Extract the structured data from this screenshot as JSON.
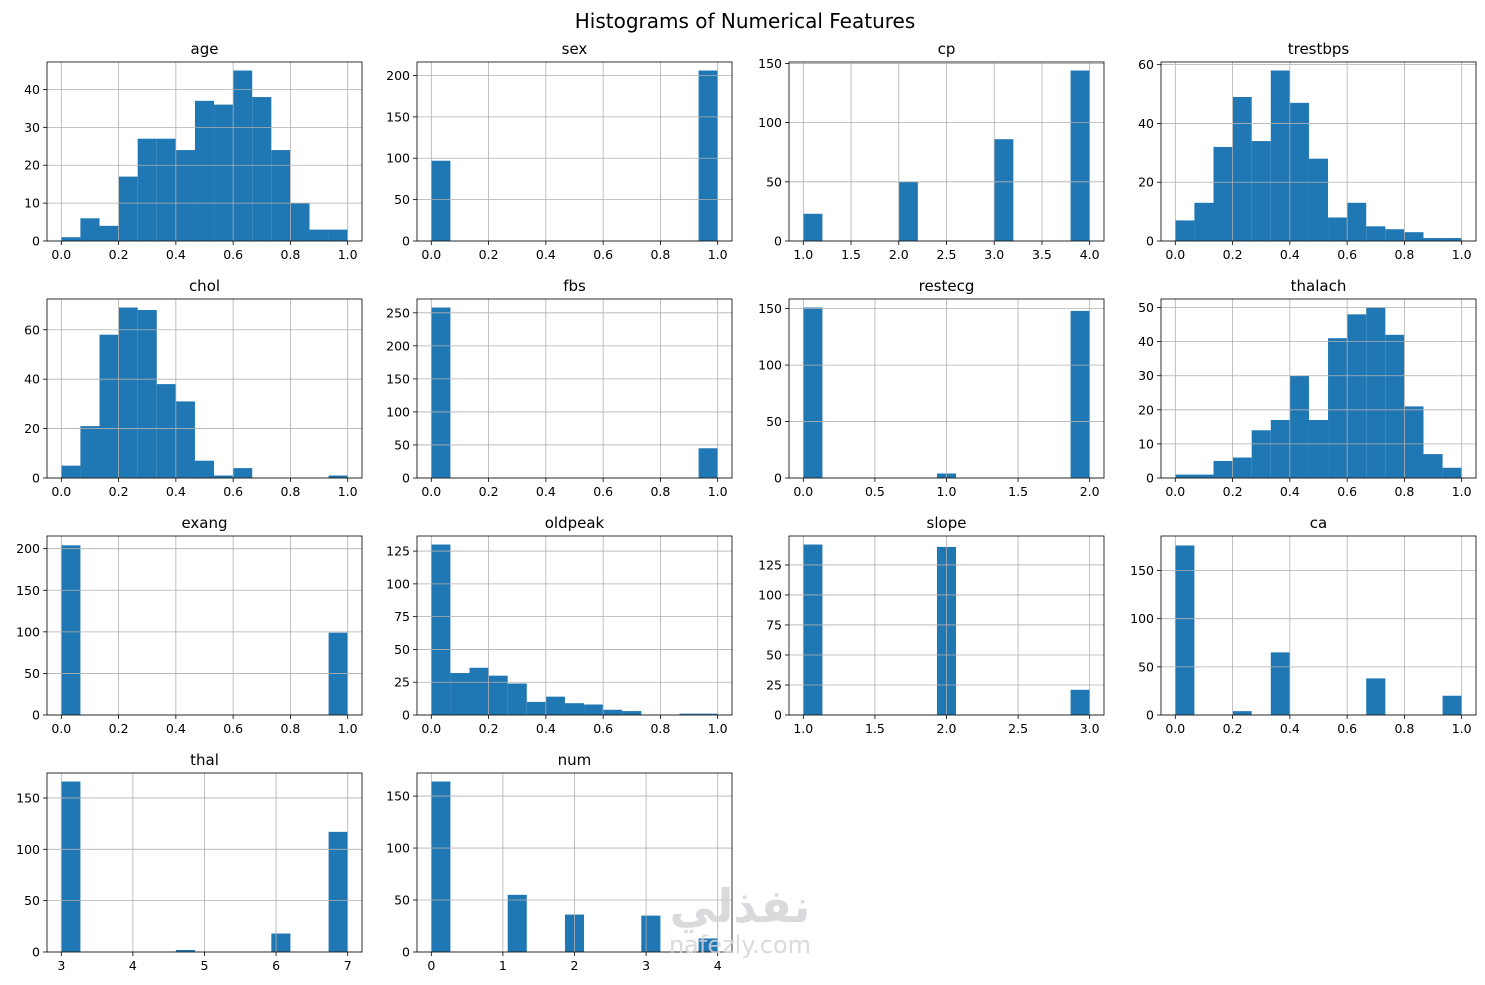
{
  "title": "Histograms of Numerical Features",
  "watermark": {
    "arabic": "نفذلي",
    "latin": "nafezly.com"
  },
  "style": {
    "bar_color": "#1f77b4",
    "grid_color": "#b0b0b0",
    "axis_color": "#000000"
  },
  "chart_data": [
    {
      "type": "bar",
      "title": "age",
      "grid": true,
      "xlim": [
        -0.05,
        1.05
      ],
      "ylim": [
        0,
        47.25
      ],
      "xticks": [
        0,
        0.2,
        0.4,
        0.6,
        0.8,
        1
      ],
      "xtick_labels": [
        "0.0",
        "0.2",
        "0.4",
        "0.6",
        "0.8",
        "1.0"
      ],
      "yticks": [
        0,
        10,
        20,
        30,
        40
      ],
      "ytick_labels": [
        "0",
        "10",
        "20",
        "30",
        "40"
      ],
      "bin_range": [
        0,
        1
      ],
      "bins": 15,
      "values": [
        1,
        6,
        4,
        17,
        27,
        27,
        24,
        37,
        36,
        45,
        38,
        24,
        10,
        3,
        3
      ]
    },
    {
      "type": "bar",
      "title": "sex",
      "grid": true,
      "xlim": [
        -0.05,
        1.05
      ],
      "ylim": [
        0,
        216.3
      ],
      "xticks": [
        0,
        0.2,
        0.4,
        0.6,
        0.8,
        1
      ],
      "xtick_labels": [
        "0.0",
        "0.2",
        "0.4",
        "0.6",
        "0.8",
        "1.0"
      ],
      "yticks": [
        0,
        50,
        100,
        150,
        200
      ],
      "ytick_labels": [
        "0",
        "50",
        "100",
        "150",
        "200"
      ],
      "bin_range": [
        0,
        1
      ],
      "bins": 15,
      "values": [
        97,
        0,
        0,
        0,
        0,
        0,
        0,
        0,
        0,
        0,
        0,
        0,
        0,
        0,
        206
      ]
    },
    {
      "type": "bar",
      "title": "cp",
      "grid": true,
      "xlim": [
        0.85,
        4.15
      ],
      "ylim": [
        0,
        151.2
      ],
      "xticks": [
        1,
        1.5,
        2,
        2.5,
        3,
        3.5,
        4
      ],
      "xtick_labels": [
        "1.0",
        "1.5",
        "2.0",
        "2.5",
        "3.0",
        "3.5",
        "4.0"
      ],
      "yticks": [
        0,
        50,
        100,
        150
      ],
      "ytick_labels": [
        "0",
        "50",
        "100",
        "150"
      ],
      "bin_range": [
        1,
        4
      ],
      "bins": 15,
      "values": [
        23,
        0,
        0,
        0,
        0,
        50,
        0,
        0,
        0,
        0,
        86,
        0,
        0,
        0,
        144
      ]
    },
    {
      "type": "bar",
      "title": "trestbps",
      "grid": true,
      "xlim": [
        -0.05,
        1.05
      ],
      "ylim": [
        0,
        60.9
      ],
      "xticks": [
        0,
        0.2,
        0.4,
        0.6,
        0.8,
        1
      ],
      "xtick_labels": [
        "0.0",
        "0.2",
        "0.4",
        "0.6",
        "0.8",
        "1.0"
      ],
      "yticks": [
        0,
        20,
        40,
        60
      ],
      "ytick_labels": [
        "0",
        "20",
        "40",
        "60"
      ],
      "bin_range": [
        0,
        1
      ],
      "bins": 15,
      "values": [
        7,
        13,
        32,
        49,
        34,
        58,
        47,
        28,
        8,
        13,
        5,
        4,
        3,
        1,
        1
      ]
    },
    {
      "type": "bar",
      "title": "chol",
      "grid": true,
      "xlim": [
        -0.05,
        1.05
      ],
      "ylim": [
        0,
        72.45
      ],
      "xticks": [
        0,
        0.2,
        0.4,
        0.6,
        0.8,
        1
      ],
      "xtick_labels": [
        "0.0",
        "0.2",
        "0.4",
        "0.6",
        "0.8",
        "1.0"
      ],
      "yticks": [
        0,
        20,
        40,
        60
      ],
      "ytick_labels": [
        "0",
        "20",
        "40",
        "60"
      ],
      "bin_range": [
        0,
        1
      ],
      "bins": 15,
      "values": [
        5,
        21,
        58,
        69,
        68,
        38,
        31,
        7,
        1,
        4,
        0,
        0,
        0,
        0,
        1
      ]
    },
    {
      "type": "bar",
      "title": "fbs",
      "grid": true,
      "xlim": [
        -0.05,
        1.05
      ],
      "ylim": [
        0,
        270.9
      ],
      "xticks": [
        0,
        0.2,
        0.4,
        0.6,
        0.8,
        1
      ],
      "xtick_labels": [
        "0.0",
        "0.2",
        "0.4",
        "0.6",
        "0.8",
        "1.0"
      ],
      "yticks": [
        0,
        50,
        100,
        150,
        200,
        250
      ],
      "ytick_labels": [
        "0",
        "50",
        "100",
        "150",
        "200",
        "250"
      ],
      "bin_range": [
        0,
        1
      ],
      "bins": 15,
      "values": [
        258,
        0,
        0,
        0,
        0,
        0,
        0,
        0,
        0,
        0,
        0,
        0,
        0,
        0,
        45
      ]
    },
    {
      "type": "bar",
      "title": "restecg",
      "grid": true,
      "xlim": [
        -0.1,
        2.1
      ],
      "ylim": [
        0,
        158.55
      ],
      "xticks": [
        0,
        0.5,
        1,
        1.5,
        2
      ],
      "xtick_labels": [
        "0.0",
        "0.5",
        "1.0",
        "1.5",
        "2.0"
      ],
      "yticks": [
        0,
        50,
        100,
        150
      ],
      "ytick_labels": [
        "0",
        "50",
        "100",
        "150"
      ],
      "bin_range": [
        0,
        2
      ],
      "bins": 15,
      "values": [
        151,
        0,
        0,
        0,
        0,
        0,
        0,
        4,
        0,
        0,
        0,
        0,
        0,
        0,
        148
      ]
    },
    {
      "type": "bar",
      "title": "thalach",
      "grid": true,
      "xlim": [
        -0.05,
        1.05
      ],
      "ylim": [
        0,
        52.5
      ],
      "xticks": [
        0,
        0.2,
        0.4,
        0.6,
        0.8,
        1
      ],
      "xtick_labels": [
        "0.0",
        "0.2",
        "0.4",
        "0.6",
        "0.8",
        "1.0"
      ],
      "yticks": [
        0,
        10,
        20,
        30,
        40,
        50
      ],
      "ytick_labels": [
        "0",
        "10",
        "20",
        "30",
        "40",
        "50"
      ],
      "bin_range": [
        0,
        1
      ],
      "bins": 15,
      "values": [
        1,
        1,
        5,
        6,
        14,
        17,
        30,
        17,
        41,
        48,
        50,
        42,
        21,
        7,
        3
      ]
    },
    {
      "type": "bar",
      "title": "exang",
      "grid": true,
      "xlim": [
        -0.05,
        1.05
      ],
      "ylim": [
        0,
        215.25
      ],
      "xticks": [
        0,
        0.2,
        0.4,
        0.6,
        0.8,
        1
      ],
      "xtick_labels": [
        "0.0",
        "0.2",
        "0.4",
        "0.6",
        "0.8",
        "1.0"
      ],
      "yticks": [
        0,
        50,
        100,
        150,
        200
      ],
      "ytick_labels": [
        "0",
        "50",
        "100",
        "150",
        "200"
      ],
      "bin_range": [
        0,
        1
      ],
      "bins": 15,
      "values": [
        204,
        0,
        0,
        0,
        0,
        0,
        0,
        0,
        0,
        0,
        0,
        0,
        0,
        0,
        99
      ]
    },
    {
      "type": "bar",
      "title": "oldpeak",
      "grid": true,
      "xlim": [
        -0.05,
        1.05
      ],
      "ylim": [
        0,
        136.5
      ],
      "xticks": [
        0,
        0.2,
        0.4,
        0.6,
        0.8,
        1
      ],
      "xtick_labels": [
        "0.0",
        "0.2",
        "0.4",
        "0.6",
        "0.8",
        "1.0"
      ],
      "yticks": [
        0,
        25,
        50,
        75,
        100,
        125
      ],
      "ytick_labels": [
        "0",
        "25",
        "50",
        "75",
        "100",
        "125"
      ],
      "bin_range": [
        0,
        1
      ],
      "bins": 15,
      "values": [
        130,
        32,
        36,
        30,
        24,
        10,
        14,
        9,
        8,
        4,
        3,
        0,
        0,
        1,
        1
      ]
    },
    {
      "type": "bar",
      "title": "slope",
      "grid": true,
      "xlim": [
        0.9,
        3.1
      ],
      "ylim": [
        0,
        149.1
      ],
      "xticks": [
        1,
        1.5,
        2,
        2.5,
        3
      ],
      "xtick_labels": [
        "1.0",
        "1.5",
        "2.0",
        "2.5",
        "3.0"
      ],
      "yticks": [
        0,
        25,
        50,
        75,
        100,
        125
      ],
      "ytick_labels": [
        "0",
        "25",
        "50",
        "75",
        "100",
        "125"
      ],
      "bin_range": [
        1,
        3
      ],
      "bins": 15,
      "values": [
        142,
        0,
        0,
        0,
        0,
        0,
        0,
        140,
        0,
        0,
        0,
        0,
        0,
        0,
        21
      ]
    },
    {
      "type": "bar",
      "title": "ca",
      "grid": true,
      "xlim": [
        -0.05,
        1.05
      ],
      "ylim": [
        0,
        185.85
      ],
      "xticks": [
        0,
        0.2,
        0.4,
        0.6,
        0.8,
        1
      ],
      "xtick_labels": [
        "0.0",
        "0.2",
        "0.4",
        "0.6",
        "0.8",
        "1.0"
      ],
      "yticks": [
        0,
        50,
        100,
        150
      ],
      "ytick_labels": [
        "0",
        "50",
        "100",
        "150"
      ],
      "bin_range": [
        0,
        1
      ],
      "bins": 15,
      "values": [
        176,
        0,
        0,
        4,
        0,
        65,
        0,
        0,
        0,
        0,
        38,
        0,
        0,
        0,
        20
      ]
    },
    {
      "type": "bar",
      "title": "thal",
      "grid": true,
      "xlim": [
        2.8,
        7.2
      ],
      "ylim": [
        0,
        174.3
      ],
      "xticks": [
        3,
        4,
        5,
        6,
        7
      ],
      "xtick_labels": [
        "3",
        "4",
        "5",
        "6",
        "7"
      ],
      "yticks": [
        0,
        50,
        100,
        150
      ],
      "ytick_labels": [
        "0",
        "50",
        "100",
        "150"
      ],
      "bin_range": [
        3,
        7
      ],
      "bins": 15,
      "values": [
        166,
        0,
        0,
        0,
        0,
        0,
        2,
        0,
        0,
        0,
        0,
        18,
        0,
        0,
        117
      ]
    },
    {
      "type": "bar",
      "title": "num",
      "grid": true,
      "xlim": [
        -0.2,
        4.2
      ],
      "ylim": [
        0,
        172.2
      ],
      "xticks": [
        0,
        1,
        2,
        3,
        4
      ],
      "xtick_labels": [
        "0",
        "1",
        "2",
        "3",
        "4"
      ],
      "yticks": [
        0,
        50,
        100,
        150
      ],
      "ytick_labels": [
        "0",
        "50",
        "100",
        "150"
      ],
      "bin_range": [
        0,
        4
      ],
      "bins": 15,
      "values": [
        164,
        0,
        0,
        0,
        55,
        0,
        0,
        36,
        0,
        0,
        0,
        35,
        0,
        0,
        13
      ]
    }
  ]
}
